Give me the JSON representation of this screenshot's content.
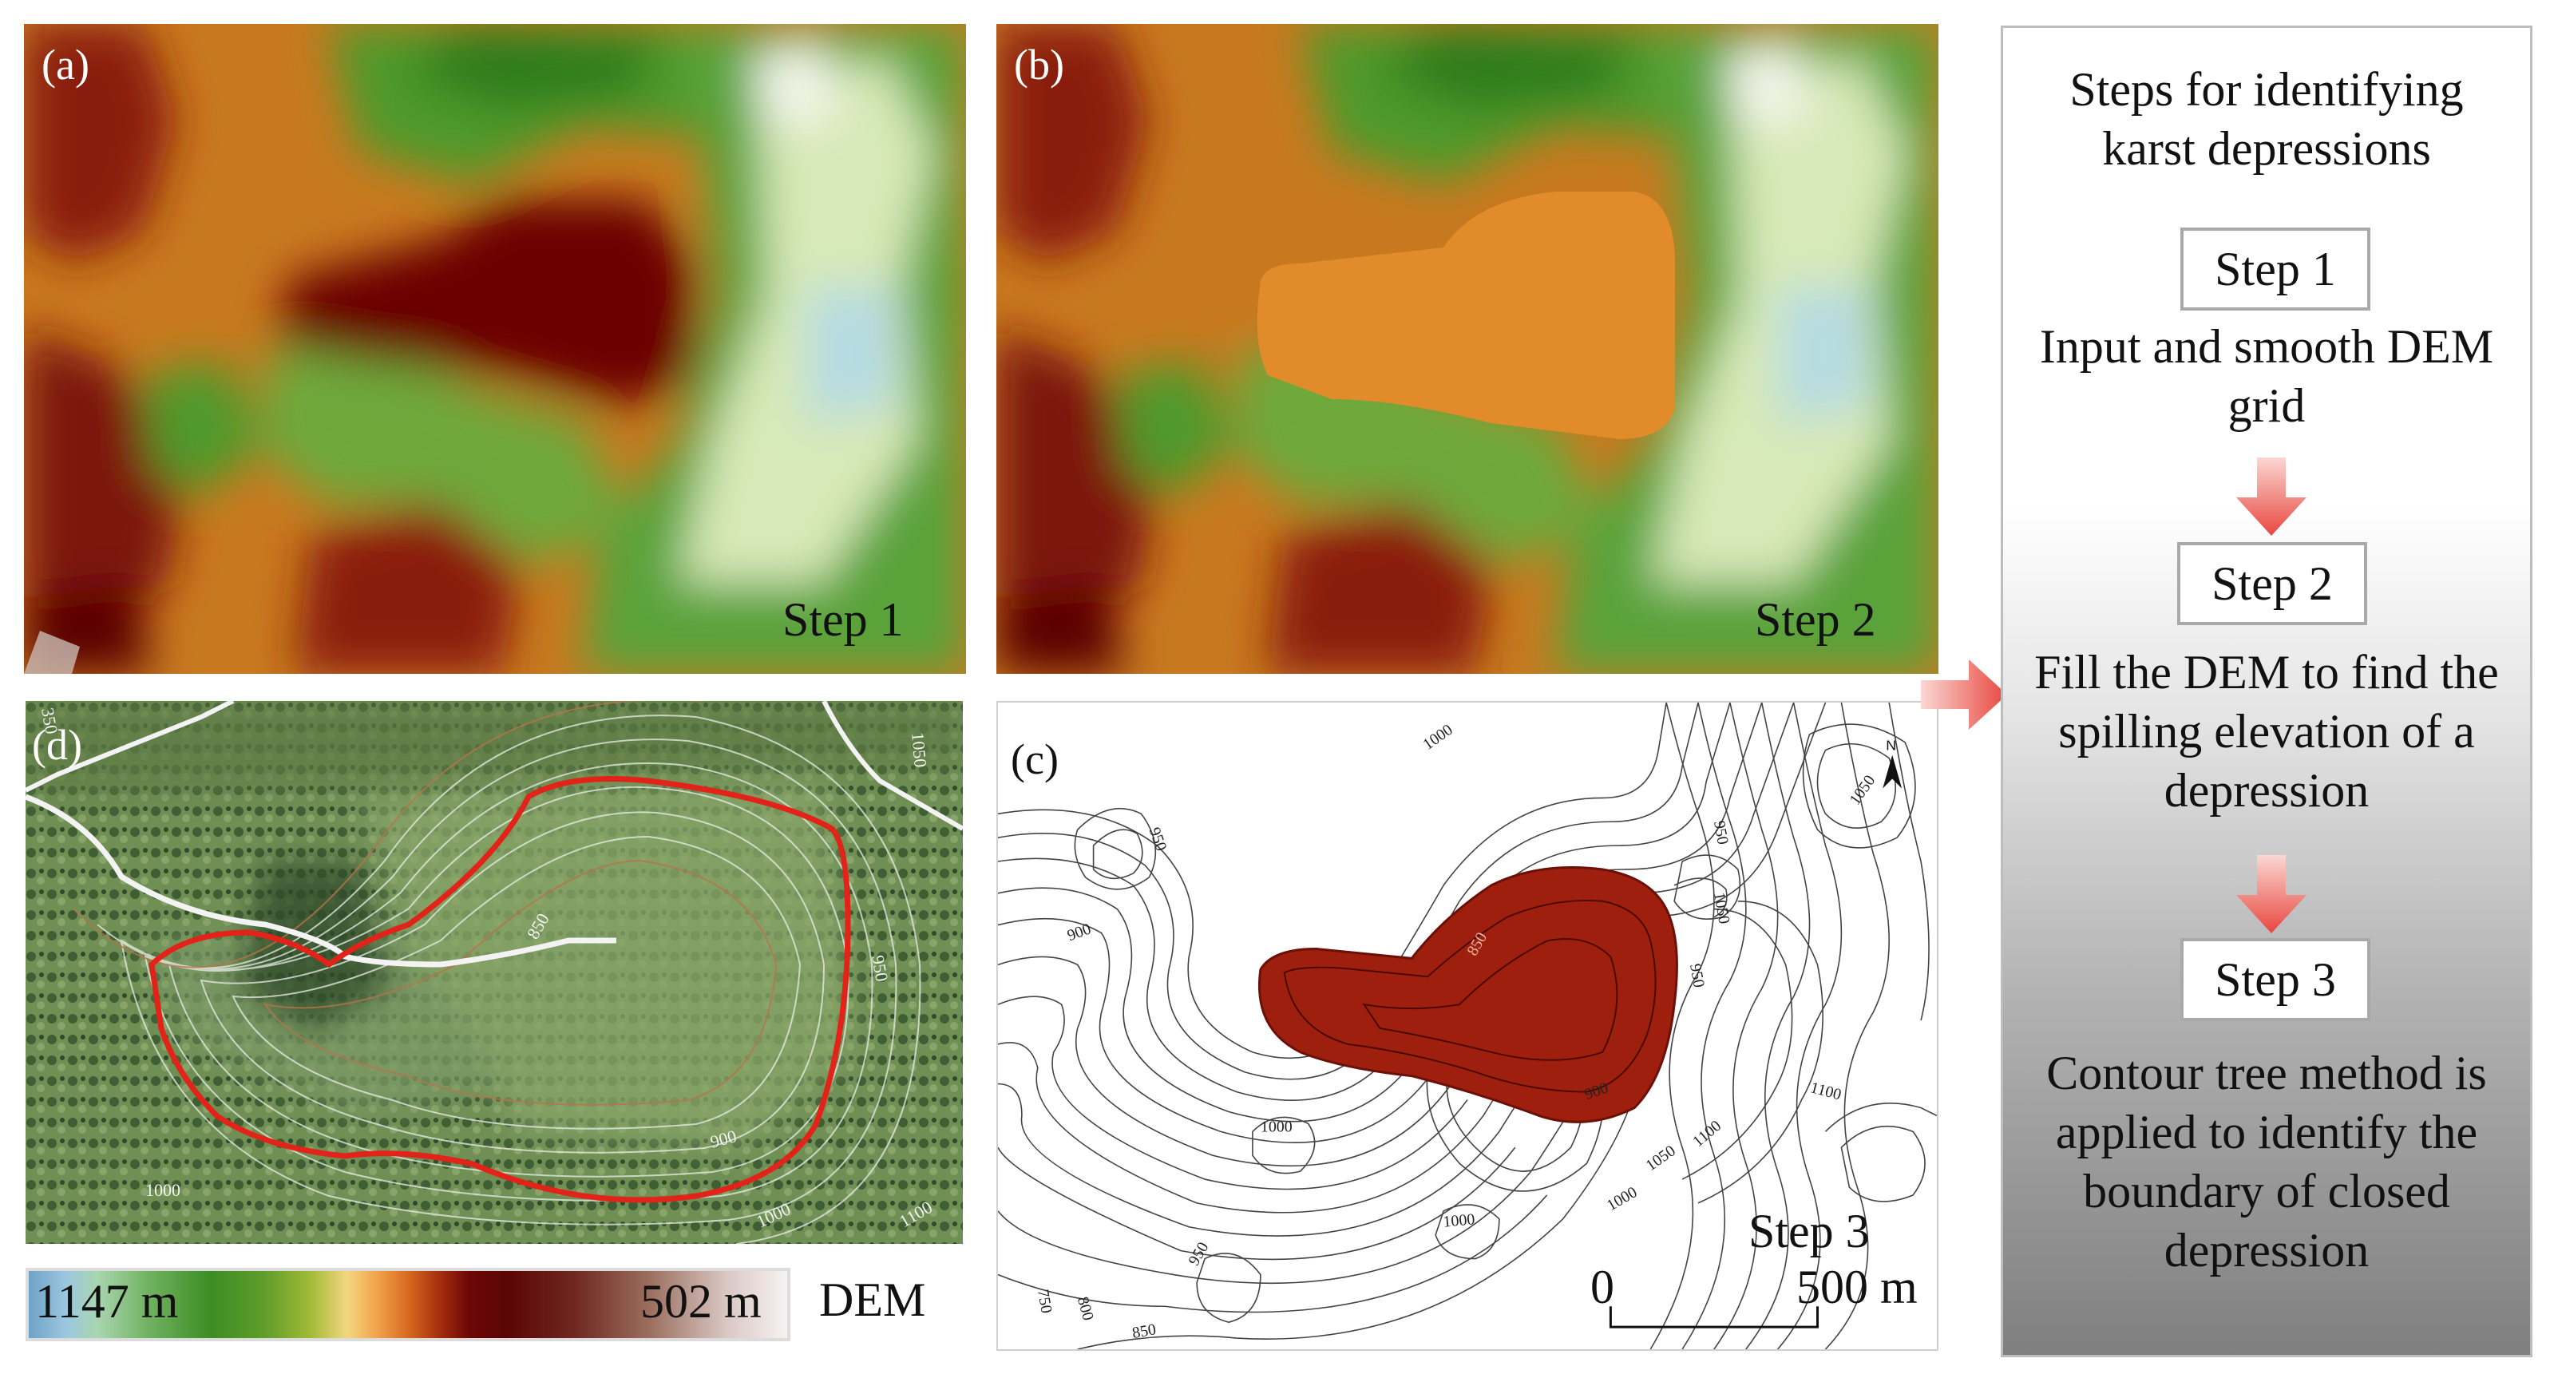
{
  "panels": {
    "a": {
      "label": "(a)",
      "step": "Step 1"
    },
    "b": {
      "label": "(b)",
      "step": "Step 2"
    },
    "c": {
      "label": "(c)",
      "step": "Step 3",
      "contours": [
        "1000",
        "950",
        "900",
        "1050",
        "1050",
        "950",
        "1000",
        "850",
        "900",
        "950",
        "1000",
        "1100",
        "1000",
        "1050",
        "1100",
        "950",
        "800",
        "750",
        "850"
      ],
      "scale_zero": "0",
      "scale_end": "500 m",
      "north": "N"
    },
    "d": {
      "label": "(d)",
      "contours": [
        "850",
        "950",
        "900",
        "1000",
        "1000",
        "1100",
        "1050",
        "350"
      ]
    }
  },
  "colorbar": {
    "max_label": "1147 m",
    "min_label": "502 m",
    "title": "DEM"
  },
  "flow": {
    "title": "Steps for identifying karst depressions",
    "steps": [
      {
        "label": "Step 1",
        "desc": "Input and smooth DEM grid"
      },
      {
        "label": "Step 2",
        "desc": "Fill the DEM to find the spilling elevation of a depression"
      },
      {
        "label": "Step 3",
        "desc": "Contour tree method is applied to identify the boundary of closed depression"
      }
    ]
  },
  "colors": {
    "arrow": "#e8473f",
    "depression_fill": "#9e1f0e",
    "boundary_red": "#e2231a",
    "filled_orange": "#e18b2a"
  }
}
